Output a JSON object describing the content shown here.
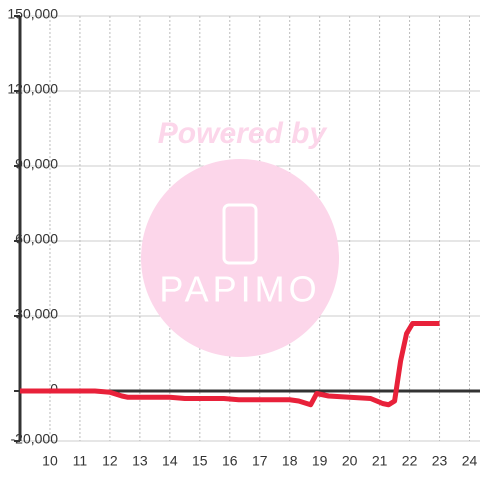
{
  "chart_data": {
    "type": "line",
    "watermark": {
      "text": "Powered by",
      "logo": "PAPIMO"
    },
    "x": [
      9,
      11.5,
      12,
      12.4,
      12.6,
      14,
      14.5,
      15.8,
      16.3,
      18,
      18.3,
      18.7,
      18.9,
      19.3,
      20,
      20.7,
      21.1,
      21.3,
      21.5,
      21.7,
      21.9,
      22.1,
      22.3,
      23
    ],
    "series": [
      {
        "color": "#e8213a",
        "values": [
          0,
          0,
          -500,
          -2000,
          -2500,
          -2500,
          -3000,
          -3000,
          -3500,
          -3500,
          -4000,
          -5500,
          -1000,
          -2000,
          -2500,
          -3000,
          -5000,
          -5500,
          -4000,
          12000,
          23000,
          27000,
          27000,
          27000
        ]
      }
    ],
    "xlim": [
      9,
      24.35
    ],
    "xticks": [
      10,
      11,
      12,
      13,
      14,
      15,
      16,
      17,
      18,
      19,
      20,
      21,
      22,
      23,
      24
    ],
    "ylim": [
      -20000,
      150000
    ],
    "yticks": [
      {
        "value": -20000,
        "label": "-20,000"
      },
      0,
      {
        "value": 30000,
        "label": "30,000"
      },
      {
        "value": 60000,
        "label": "60,000"
      },
      {
        "value": 90000,
        "label": "90,000"
      },
      {
        "value": 120000,
        "label": "120,000"
      },
      {
        "value": 150000,
        "label": "150,000"
      }
    ],
    "grid": true
  }
}
